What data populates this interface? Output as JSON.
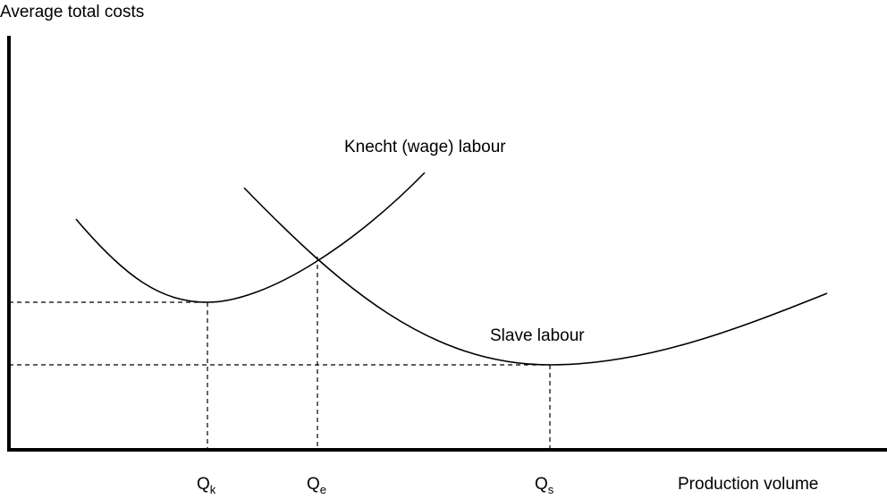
{
  "axes": {
    "y_label": "Average total costs",
    "x_label": "Production volume"
  },
  "curves": {
    "knecht": "Knecht (wage) labour",
    "slave": "Slave labour"
  },
  "points": [
    {
      "main": "Q",
      "sub": "k"
    },
    {
      "main": "Q",
      "sub": "e"
    },
    {
      "main": "Q",
      "sub": "s"
    }
  ]
}
